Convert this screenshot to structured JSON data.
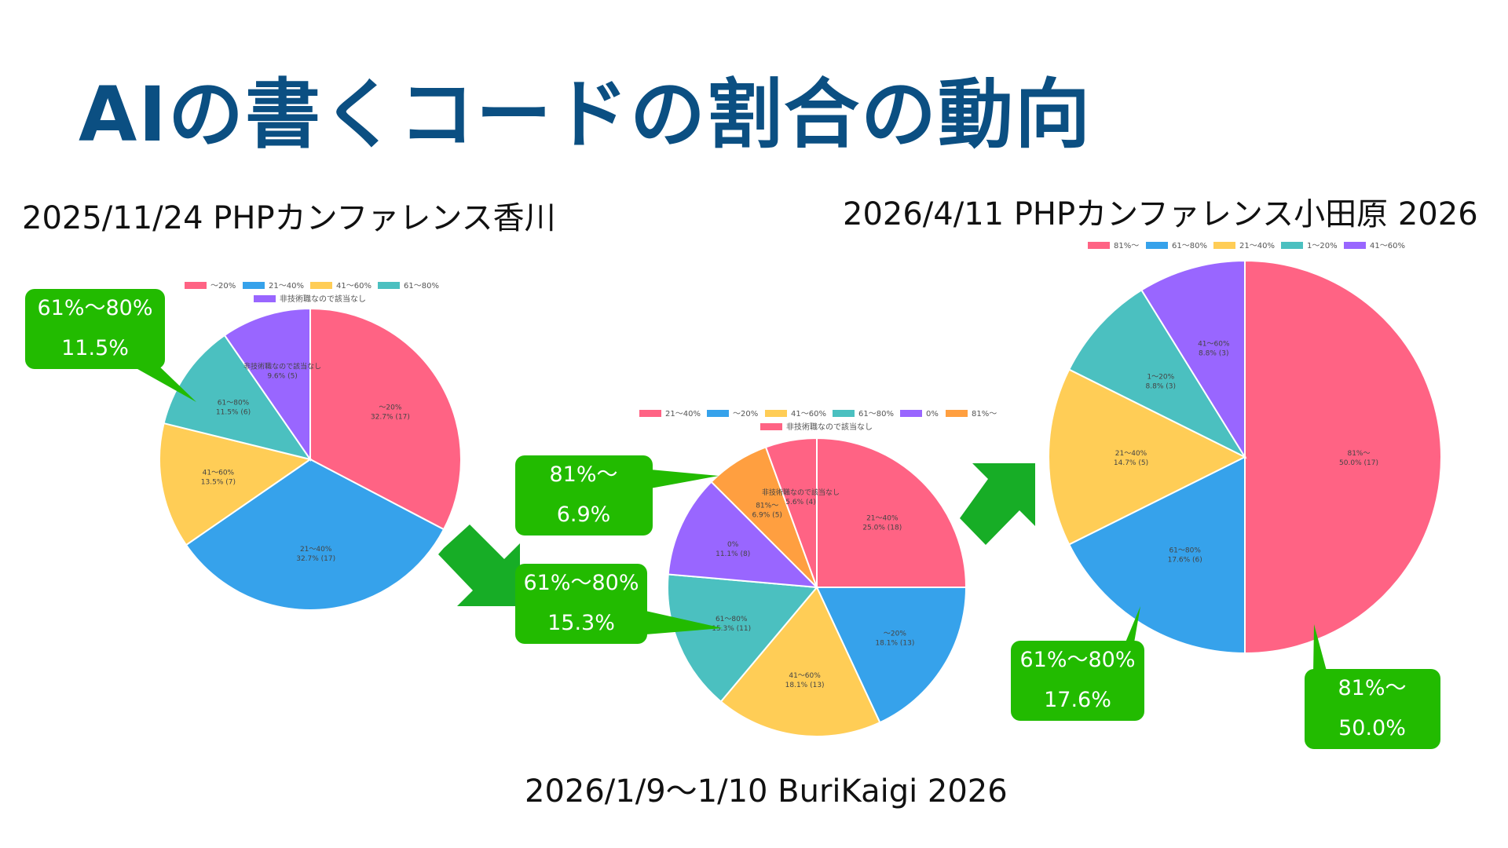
{
  "title": "AIの書くコードの割合の動向",
  "colors": {
    "pink": "#ff6384",
    "blue": "#36a2eb",
    "yellow": "#ffcd56",
    "teal": "#4bc0c0",
    "purple": "#9966ff",
    "orange": "#ff9f40",
    "callout_green": "#22bb00",
    "arrow_green": "#17ad26",
    "title_blue": "#0b4f82"
  },
  "events": [
    {
      "label": "2025/11/24 PHPカンファレンス香川"
    },
    {
      "label": "2026/1/9〜1/10 BuriKaigi 2026"
    },
    {
      "label": "2026/4/11 PHPカンファレンス小田原 2026"
    }
  ],
  "callouts": [
    {
      "line1": "61%〜80%",
      "line2": "11.5%"
    },
    {
      "line1": "81%〜",
      "line2": "6.9%"
    },
    {
      "line1": "61%〜80%",
      "line2": "15.3%"
    },
    {
      "line1": "61%〜80%",
      "line2": "17.6%"
    },
    {
      "line1": "81%〜",
      "line2": "50.0%"
    }
  ],
  "chart_data": [
    {
      "type": "pie",
      "title": "",
      "legend_position": "top",
      "legend": [
        "〜20%",
        "21〜40%",
        "41〜60%",
        "61〜80%",
        "非技術職なので該当なし"
      ],
      "slices": [
        {
          "label": "〜20%",
          "value_label": "32.7% (17)",
          "value": 17,
          "percent": 32.7,
          "color": "pink"
        },
        {
          "label": "21〜40%",
          "value_label": "32.7% (17)",
          "value": 17,
          "percent": 32.7,
          "color": "blue"
        },
        {
          "label": "41〜60%",
          "value_label": "13.5% (7)",
          "value": 7,
          "percent": 13.5,
          "color": "yellow"
        },
        {
          "label": "61〜80%",
          "value_label": "11.5% (6)",
          "value": 6,
          "percent": 11.5,
          "color": "teal"
        },
        {
          "label": "非技術職なので該当なし",
          "value_label": "9.6% (5)",
          "value": 5,
          "percent": 9.6,
          "color": "purple"
        }
      ]
    },
    {
      "type": "pie",
      "title": "",
      "legend_position": "top",
      "legend": [
        "21〜40%",
        "〜20%",
        "41〜60%",
        "61〜80%",
        "0%",
        "81%〜",
        "非技術職なので該当なし"
      ],
      "slices": [
        {
          "label": "21〜40%",
          "value_label": "25.0% (18)",
          "value": 18,
          "percent": 25.0,
          "color": "pink"
        },
        {
          "label": "〜20%",
          "value_label": "18.1% (13)",
          "value": 13,
          "percent": 18.1,
          "color": "blue"
        },
        {
          "label": "41〜60%",
          "value_label": "18.1% (13)",
          "value": 13,
          "percent": 18.1,
          "color": "yellow"
        },
        {
          "label": "61〜80%",
          "value_label": "15.3% (11)",
          "value": 11,
          "percent": 15.3,
          "color": "teal"
        },
        {
          "label": "0%",
          "value_label": "11.1% (8)",
          "value": 8,
          "percent": 11.1,
          "color": "purple"
        },
        {
          "label": "81%〜",
          "value_label": "6.9% (5)",
          "value": 5,
          "percent": 6.9,
          "color": "orange"
        },
        {
          "label": "非技術職なので該当なし",
          "value_label": "5.6% (4)",
          "value": 4,
          "percent": 5.6,
          "color": "pink"
        }
      ]
    },
    {
      "type": "pie",
      "title": "",
      "legend_position": "top",
      "legend": [
        "81%〜",
        "61〜80%",
        "21〜40%",
        "1〜20%",
        "41〜60%"
      ],
      "slices": [
        {
          "label": "81%〜",
          "value_label": "50.0% (17)",
          "value": 17,
          "percent": 50.0,
          "color": "pink"
        },
        {
          "label": "61〜80%",
          "value_label": "17.6% (6)",
          "value": 6,
          "percent": 17.6,
          "color": "blue"
        },
        {
          "label": "21〜40%",
          "value_label": "14.7% (5)",
          "value": 5,
          "percent": 14.7,
          "color": "yellow"
        },
        {
          "label": "1〜20%",
          "value_label": "8.8% (3)",
          "value": 3,
          "percent": 8.8,
          "color": "teal"
        },
        {
          "label": "41〜60%",
          "value_label": "8.8% (3)",
          "value": 3,
          "percent": 8.8,
          "color": "purple"
        }
      ]
    }
  ]
}
